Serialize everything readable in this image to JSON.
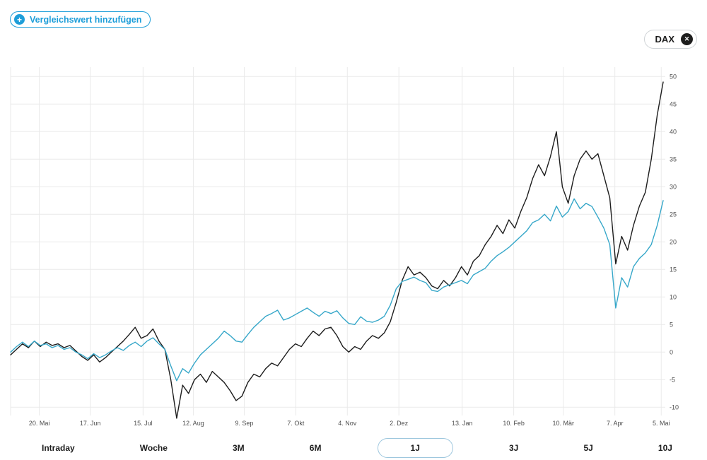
{
  "toolbar": {
    "add_comparison_label": "Vergleichswert hinzufügen",
    "plus_icon": "+",
    "accent_color": "#1e9ed9"
  },
  "badge": {
    "label": "DAX",
    "close_icon": "✕",
    "close_bg_color": "#1d1d1d"
  },
  "chart_data": {
    "type": "line",
    "title": "",
    "xlabel": "",
    "ylabel": "",
    "grid": true,
    "grid_color": "#eaeaea",
    "axis_label_color": "#4d4d4d",
    "legend_position": "none",
    "ylim": [
      -13,
      51.7
    ],
    "y_ticks": [
      50,
      45,
      40,
      35,
      30,
      25,
      20,
      15,
      10,
      5,
      0,
      -5,
      -10
    ],
    "x_tick_labels": [
      "20. Mai",
      "17. Jun",
      "15. Jul",
      "12. Aug",
      "9. Sep",
      "7. Okt",
      "4. Nov",
      "2. Dez",
      "13. Jan",
      "10. Feb",
      "10. Mär",
      "7. Apr",
      "5. Mai"
    ],
    "x_tick_positions": [
      0.044,
      0.122,
      0.203,
      0.28,
      0.358,
      0.437,
      0.516,
      0.595,
      0.692,
      0.771,
      0.847,
      0.926,
      0.997
    ],
    "series": [
      {
        "name": "",
        "color": "#1d1d1d",
        "values": [
          -0.5,
          0.5,
          1.5,
          0.8,
          2.0,
          1.0,
          1.8,
          1.2,
          1.5,
          0.8,
          1.2,
          0.2,
          -0.8,
          -1.5,
          -0.5,
          -1.8,
          -1.0,
          0.0,
          1.0,
          2.0,
          3.2,
          4.5,
          2.5,
          3.0,
          4.2,
          2.0,
          0.5,
          -5.0,
          -12.0,
          -6.0,
          -7.5,
          -5.0,
          -4.0,
          -5.5,
          -3.5,
          -4.5,
          -5.5,
          -7.0,
          -8.8,
          -8.0,
          -5.5,
          -4.0,
          -4.5,
          -3.0,
          -2.0,
          -2.5,
          -1.0,
          0.5,
          1.5,
          1.0,
          2.5,
          3.8,
          3.0,
          4.2,
          4.5,
          3.0,
          1.0,
          0.0,
          1.0,
          0.5,
          2.0,
          3.0,
          2.5,
          3.5,
          5.5,
          9.0,
          13.0,
          15.5,
          14.0,
          14.5,
          13.5,
          12.0,
          11.5,
          13.0,
          12.0,
          13.5,
          15.5,
          14.0,
          16.5,
          17.5,
          19.5,
          21.0,
          23.0,
          21.5,
          24.0,
          22.5,
          25.5,
          28.0,
          31.5,
          34.0,
          32.0,
          35.5,
          40.0,
          30.0,
          27.0,
          32.0,
          35.0,
          36.5,
          35.0,
          36.0,
          32.0,
          28.0,
          16.0,
          21.0,
          18.5,
          23.0,
          26.5,
          29.0,
          35.0,
          43.0,
          49.0
        ]
      },
      {
        "name": "DAX",
        "color": "#36a7c9",
        "values": [
          0.0,
          1.0,
          1.8,
          1.0,
          2.0,
          1.2,
          1.5,
          0.8,
          1.2,
          0.5,
          0.8,
          0.0,
          -0.5,
          -1.2,
          -0.3,
          -1.0,
          -0.5,
          0.2,
          0.8,
          0.3,
          1.2,
          1.8,
          1.0,
          2.0,
          2.6,
          1.5,
          0.5,
          -2.5,
          -5.2,
          -3.0,
          -3.8,
          -2.0,
          -0.5,
          0.5,
          1.5,
          2.5,
          3.8,
          3.0,
          2.0,
          1.8,
          3.2,
          4.5,
          5.5,
          6.5,
          7.0,
          7.6,
          5.8,
          6.2,
          6.8,
          7.4,
          8.0,
          7.2,
          6.5,
          7.4,
          7.0,
          7.5,
          6.2,
          5.2,
          5.0,
          6.4,
          5.6,
          5.4,
          5.8,
          6.5,
          8.5,
          11.5,
          12.8,
          13.2,
          13.6,
          13.0,
          12.6,
          11.2,
          11.0,
          11.8,
          12.2,
          12.6,
          13.0,
          12.4,
          14.0,
          14.6,
          15.2,
          16.5,
          17.5,
          18.2,
          19.0,
          20.0,
          21.0,
          22.0,
          23.5,
          24.0,
          25.0,
          23.8,
          26.5,
          24.5,
          25.5,
          27.8,
          26.0,
          27.0,
          26.4,
          24.5,
          22.5,
          19.5,
          8.0,
          13.5,
          11.8,
          15.5,
          17.0,
          18.0,
          19.5,
          23.0,
          27.5
        ]
      }
    ]
  },
  "range_selector": {
    "options": [
      "Intraday",
      "Woche",
      "3M",
      "6M",
      "1J",
      "3J",
      "5J",
      "10J"
    ],
    "selected": "1J",
    "selected_border_color": "#9ec7de"
  }
}
